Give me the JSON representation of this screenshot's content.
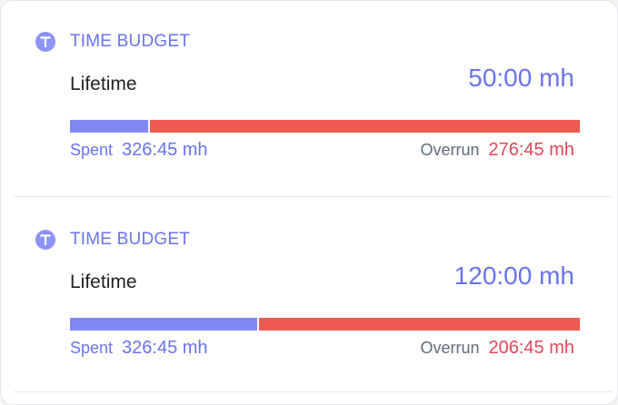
{
  "colors": {
    "accent": "#6a72ee",
    "icon_bg": "#8b93f7",
    "spent_bar": "#7f89f5",
    "overrun_bar": "#ef5a50",
    "overrun_text": "#e2475a",
    "muted_text": "#5e6b7c"
  },
  "budgets": [
    {
      "icon": "time-budget-icon",
      "header": "TIME BUDGET",
      "period": "Lifetime",
      "budget": "50:00 mh",
      "spent_label": "Spent",
      "spent_value": "326:45 mh",
      "overrun_label": "Overrun",
      "overrun_value": "276:45 mh",
      "spent_fraction": 0.153
    },
    {
      "icon": "time-budget-icon",
      "header": "TIME BUDGET",
      "period": "Lifetime",
      "budget": "120:00 mh",
      "spent_label": "Spent",
      "spent_value": "326:45 mh",
      "overrun_label": "Overrun",
      "overrun_value": "206:45 mh",
      "spent_fraction": 0.367
    }
  ]
}
